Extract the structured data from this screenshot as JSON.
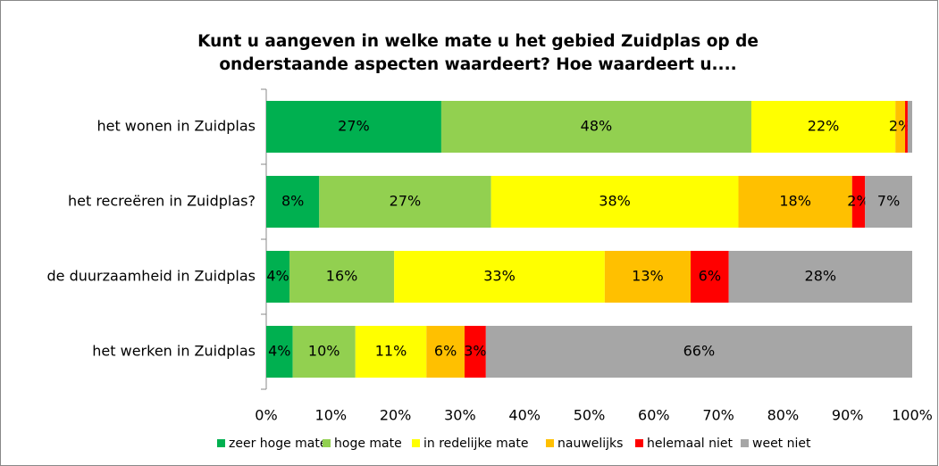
{
  "chart_data": {
    "type": "stacked-barh",
    "title": "Kunt u aangeven in welke mate u het gebied Zuidplas op de onderstaande aspecten waardeert? Hoe waardeert u....",
    "categories": [
      "het wonen in Zuidplas",
      "het recreëren in Zuidplas?",
      "de duurzaamheid in Zuidplas",
      "het werken in Zuidplas"
    ],
    "series": [
      {
        "name": "zeer hoge mate",
        "color": "#00b050",
        "values": [
          27.1,
          8.2,
          3.6,
          4.1
        ],
        "value_labels": [
          "27%",
          "8%",
          "4%",
          "4%"
        ]
      },
      {
        "name": "hoge mate",
        "color": "#92d050",
        "values": [
          48.0,
          26.6,
          16.2,
          9.7
        ],
        "value_labels": [
          "48%",
          "27%",
          "16%",
          "10%"
        ]
      },
      {
        "name": "in redelijke mate",
        "color": "#ffff00",
        "values": [
          22.3,
          38.3,
          32.6,
          11.0
        ],
        "value_labels": [
          "22%",
          "38%",
          "33%",
          "11%"
        ]
      },
      {
        "name": "nauwelijks",
        "color": "#ffc000",
        "values": [
          1.5,
          17.6,
          13.3,
          5.9
        ],
        "value_labels": [
          "2%",
          "18%",
          "13%",
          "6%"
        ]
      },
      {
        "name": "helemaal niet",
        "color": "#ff0000",
        "values": [
          0.4,
          2.0,
          5.9,
          3.3
        ],
        "value_labels": [
          null,
          "2%",
          "6%",
          "3%"
        ]
      },
      {
        "name": "weet niet",
        "color": "#a6a6a6",
        "values": [
          0.7,
          7.3,
          28.4,
          66.0
        ],
        "value_labels": [
          null,
          "7%",
          "28%",
          "66%"
        ]
      }
    ],
    "xlim": [
      0,
      100
    ],
    "xticks": [
      {
        "value": 0,
        "label": "0%"
      },
      {
        "value": 10,
        "label": "10%"
      },
      {
        "value": 20,
        "label": "20%"
      },
      {
        "value": 30,
        "label": "30%"
      },
      {
        "value": 40,
        "label": "40%"
      },
      {
        "value": 50,
        "label": "50%"
      },
      {
        "value": 60,
        "label": "60%"
      },
      {
        "value": 70,
        "label": "70%"
      },
      {
        "value": 80,
        "label": "80%"
      },
      {
        "value": 90,
        "label": "90%"
      },
      {
        "value": 100,
        "label": "100%"
      }
    ],
    "legend": "bottom",
    "grid": false
  }
}
